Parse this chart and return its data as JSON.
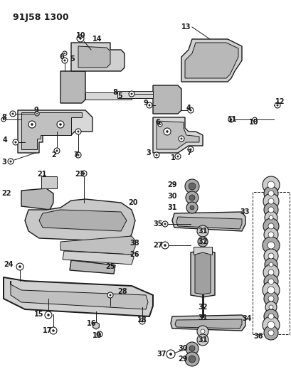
{
  "title": "91J58 1300",
  "bg_color": "#ffffff",
  "line_color": "#1a1a1a",
  "fig_width": 4.1,
  "fig_height": 5.33,
  "dpi": 100
}
